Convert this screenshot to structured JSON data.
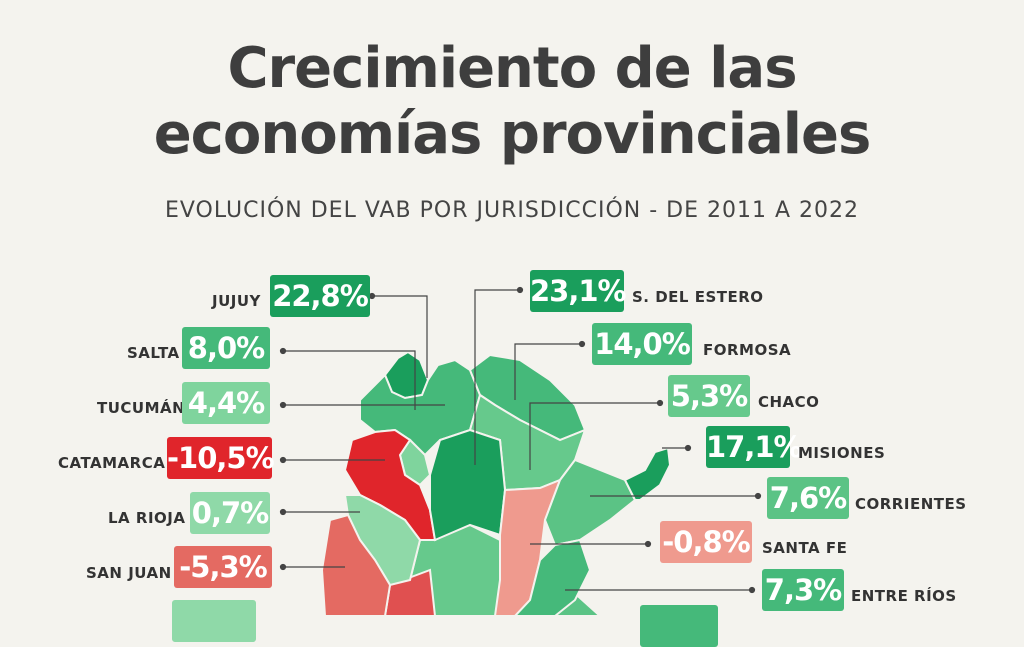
{
  "header": {
    "title_line1": "Crecimiento de las",
    "title_line2": "economías provinciales",
    "subtitle": "EVOLUCIÓN DEL VAB POR JURISDICCIÓN - DE 2011 A 2022"
  },
  "colors": {
    "high_growth": "#1a9e5c",
    "mid_growth": "#45b97a",
    "low_growth": "#8fd9a8",
    "decline_strong": "#e0252b",
    "decline_mild": "#ef9a8e"
  },
  "provinces": {
    "jujuy": {
      "name": "JUJUY",
      "value": "22,8%",
      "vab_growth_pct": 22.8
    },
    "salta": {
      "name": "SALTA",
      "value": "8,0%",
      "vab_growth_pct": 8.0
    },
    "tucuman": {
      "name": "TUCUMÁN",
      "value": "4,4%",
      "vab_growth_pct": 4.4
    },
    "catamarca": {
      "name": "CATAMARCA",
      "value": "-10,5%",
      "vab_growth_pct": -10.5
    },
    "la_rioja": {
      "name": "LA RIOJA",
      "value": "0,7%",
      "vab_growth_pct": 0.7
    },
    "san_juan": {
      "name": "SAN JUAN",
      "value": "-5,3%",
      "vab_growth_pct": -5.3
    },
    "s_del_estero": {
      "name": "S. DEL ESTERO",
      "value": "23,1%",
      "vab_growth_pct": 23.1
    },
    "formosa": {
      "name": "FORMOSA",
      "value": "14,0%",
      "vab_growth_pct": 14.0
    },
    "chaco": {
      "name": "CHACO",
      "value": "5,3%",
      "vab_growth_pct": 5.3
    },
    "misiones": {
      "name": "MISIONES",
      "value": "17,1%",
      "vab_growth_pct": 17.1
    },
    "corrientes": {
      "name": "CORRIENTES",
      "value": "7,6%",
      "vab_growth_pct": 7.6
    },
    "santa_fe": {
      "name": "SANTA FE",
      "value": "-0,8%",
      "vab_growth_pct": -0.8
    },
    "entre_rios": {
      "name": "ENTRE RÍOS",
      "value": "7,3%",
      "vab_growth_pct": 7.3
    }
  }
}
